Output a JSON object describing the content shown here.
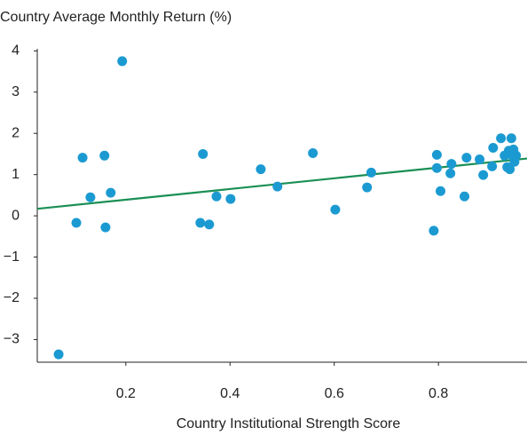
{
  "chart_data": {
    "type": "scatter",
    "title": "Country Average Monthly Return (%)",
    "x_label": "Country Institutional Strength Score",
    "xlim": [
      0.03,
      0.97
    ],
    "ylim": [
      -3.55,
      4.05
    ],
    "xticks": [
      0.2,
      0.4,
      0.6,
      0.8
    ],
    "yticks": [
      {
        "value": -3,
        "label": "−3"
      },
      {
        "value": -2,
        "label": "−2"
      },
      {
        "value": -1,
        "label": "−1"
      },
      0,
      1,
      2,
      3,
      4
    ],
    "color": "#1b9ad2",
    "x": [
      0.071,
      0.105,
      0.117,
      0.132,
      0.159,
      0.161,
      0.171,
      0.193,
      0.343,
      0.348,
      0.36,
      0.374,
      0.401,
      0.459,
      0.491,
      0.559,
      0.602,
      0.663,
      0.671,
      0.791,
      0.797,
      0.797,
      0.804,
      0.823,
      0.825,
      0.85,
      0.854,
      0.879,
      0.886,
      0.903,
      0.905,
      0.92,
      0.927,
      0.932,
      0.935,
      0.937,
      0.94,
      0.942,
      0.946,
      0.949,
      0.944
    ],
    "values": [
      -3.36,
      -0.17,
      1.41,
      0.45,
      1.46,
      -0.28,
      0.56,
      3.75,
      -0.17,
      1.5,
      -0.21,
      0.47,
      0.41,
      1.13,
      0.71,
      1.52,
      0.15,
      0.69,
      1.05,
      -0.36,
      1.48,
      1.16,
      0.6,
      1.03,
      1.26,
      0.47,
      1.41,
      1.37,
      0.99,
      1.2,
      1.65,
      1.88,
      1.46,
      1.18,
      1.58,
      1.13,
      1.88,
      1.46,
      1.31,
      1.46,
      1.61
    ],
    "trendline": {
      "color": "#1a8f55",
      "x": [
        0.03,
        0.97
      ],
      "values": [
        0.17,
        1.39
      ]
    }
  }
}
